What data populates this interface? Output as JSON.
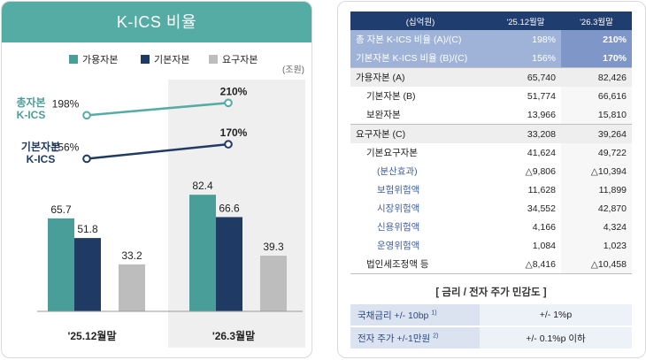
{
  "left": {
    "title": "K-ICS 비율",
    "unit": "(조원)",
    "legend": [
      {
        "label": "가용자본",
        "color": "#4a9e99"
      },
      {
        "label": "기본자본",
        "color": "#1f3a63"
      },
      {
        "label": "요구자본",
        "color": "#bdbdbd"
      }
    ],
    "line_labels": {
      "total": "총자본\nK-ICS",
      "basic": "기본자본\nK-ICS"
    }
  },
  "chart_data": {
    "type": "bar",
    "categories": [
      "'25.12월말",
      "'26.3월말"
    ],
    "series": [
      {
        "name": "가용자본",
        "values": [
          65.7,
          82.4
        ],
        "color": "#4a9e99"
      },
      {
        "name": "기본자본",
        "values": [
          51.8,
          66.6
        ],
        "color": "#1f3a63"
      },
      {
        "name": "요구자본",
        "values": [
          33.2,
          39.3
        ],
        "color": "#bdbdbd"
      }
    ],
    "ratio_lines": [
      {
        "name": "총자본 K-ICS",
        "values": [
          "198%",
          "210%"
        ],
        "color": "#55aca5"
      },
      {
        "name": "기본자본 K-ICS",
        "values": [
          "156%",
          "170%"
        ],
        "color": "#1f3a63"
      }
    ],
    "highlight_category": "'26.3월말"
  },
  "table": {
    "headers": [
      "(십억원)",
      "'25.12월말",
      "'26.3월말"
    ],
    "rows": [
      {
        "label": "총 자본 K-ICS 비율 (A)/(C)",
        "v1": "198%",
        "v2": "210%",
        "style": "ratio"
      },
      {
        "label": "기본자본 K-ICS 비율 (B)/(C)",
        "v1": "156%",
        "v2": "170%",
        "style": "ratio"
      },
      {
        "label": "가용자본 (A)",
        "v1": "65,740",
        "v2": "82,426",
        "style": "grp"
      },
      {
        "label": "기본자본 (B)",
        "v1": "51,774",
        "v2": "66,616",
        "style": "indent1"
      },
      {
        "label": "보완자본",
        "v1": "13,966",
        "v2": "15,810",
        "style": "indent1"
      },
      {
        "label": "요구자본 (C)",
        "v1": "33,208",
        "v2": "39,264",
        "style": "grp"
      },
      {
        "label": "기본요구자본",
        "v1": "41,624",
        "v2": "49,722",
        "style": "indent1"
      },
      {
        "label": "(분산효과)",
        "v1": "△9,806",
        "v2": "△10,394",
        "style": "indent2"
      },
      {
        "label": "보험위험액",
        "v1": "11,628",
        "v2": "11,899",
        "style": "indent2"
      },
      {
        "label": "시장위험액",
        "v1": "34,552",
        "v2": "42,870",
        "style": "indent2"
      },
      {
        "label": "신용위험액",
        "v1": "4,166",
        "v2": "4,324",
        "style": "indent2"
      },
      {
        "label": "운영위험액",
        "v1": "1,084",
        "v2": "1,023",
        "style": "indent2"
      },
      {
        "label": "법인세조정액 등",
        "v1": "△8,416",
        "v2": "△10,458",
        "style": "indent1"
      }
    ]
  },
  "sensitivity": {
    "title": "[ 금리 / 전자 주가 민감도 ]",
    "rows": [
      {
        "label": "국채금리 +/- 10bp",
        "note": "1)",
        "value": "+/- 1%p"
      },
      {
        "label": "전자 주가 +/-1만원",
        "note": "2)",
        "value": "+/- 0.1%p 이하"
      }
    ]
  }
}
